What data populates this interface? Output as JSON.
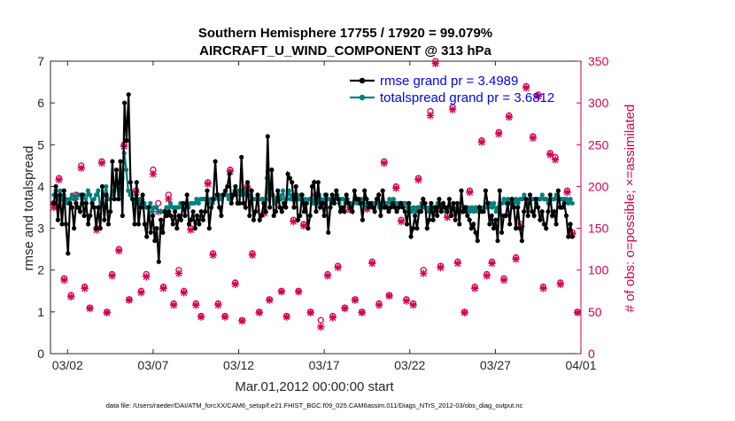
{
  "chart_data": {
    "type": "line",
    "title_line1": "Southern Hemisphere 17755 / 17920 = 99.079%",
    "title_line2": "AIRCRAFT_U_WIND_COMPONENT @ 313 hPa",
    "xlabel": "Mar.01,2012 00:00:00 start",
    "ylabel_left": "rmse and totalspread",
    "ylabel_right": "# of obs: o=possible; ×=assimilated",
    "footnote": "data file: /Users/raeder/DAI/ATM_forcXX/CAM6_setup/f.e21.FHIST_BGC.f09_025.CAM6assim.011/Diags_NTrS_2012-03/obs_diag_output.nc",
    "x_ticks": [
      {
        "label": "03/02",
        "day": 2
      },
      {
        "label": "03/07",
        "day": 7
      },
      {
        "label": "03/12",
        "day": 12
      },
      {
        "label": "03/17",
        "day": 17
      },
      {
        "label": "03/22",
        "day": 22
      },
      {
        "label": "03/27",
        "day": 27
      },
      {
        "label": "04/01",
        "day": 32
      }
    ],
    "xlim": [
      1,
      32
    ],
    "ylim_left": [
      0,
      7
    ],
    "yticks_left": [
      "0",
      "1",
      "2",
      "3",
      "4",
      "5",
      "6",
      "7"
    ],
    "ylim_right": [
      0,
      350
    ],
    "yticks_right": [
      "0",
      "50",
      "100",
      "150",
      "200",
      "250",
      "300",
      "350"
    ],
    "legend": [
      {
        "label": "rmse grand pr = 3.4989",
        "color": "#000000"
      },
      {
        "label": "totalspread grand pr = 3.6812",
        "color": "#007f7f"
      }
    ],
    "colors": {
      "rmse": "#000000",
      "spread": "#007f7f",
      "obs": "#d6004f",
      "legend_text": "#0000ff"
    },
    "series": [
      {
        "name": "rmse",
        "values": [
          3.6,
          4.0,
          3.2,
          3.8,
          3.1,
          3.9,
          3.1,
          2.4,
          3.6,
          3.5,
          3.0,
          3.6,
          3.5,
          3.4,
          3.8,
          3.3,
          3.6,
          3.1,
          3.3,
          3.6,
          3.5,
          3.0,
          3.5,
          3.0,
          4.0,
          3.2,
          3.8,
          3.1,
          3.4,
          4.6,
          3.7,
          4.4,
          3.7,
          4.6,
          3.3,
          6.0,
          5.1,
          6.2,
          4.1,
          3.7,
          3.1,
          4.1,
          3.1,
          3.5,
          3.8,
          3.1,
          2.8,
          3.5,
          2.9,
          3.3,
          2.7,
          3.0,
          2.2,
          3.2,
          2.9,
          3.4,
          3.3,
          3.4,
          3.3,
          3.1,
          3.4,
          3.0,
          3.3,
          3.2,
          3.6,
          3.3,
          3.8,
          3.1,
          3.2,
          3.4,
          3.0,
          3.3,
          3.1,
          3.4,
          3.2,
          3.4,
          3.9,
          3.0,
          3.5,
          3.7,
          4.6,
          3.8,
          3.5,
          3.3,
          3.8,
          3.9,
          4.0,
          4.3,
          3.6,
          3.8,
          4.0,
          3.6,
          3.6,
          4.7,
          3.6,
          3.5,
          4.1,
          3.3,
          3.9,
          3.2,
          3.4,
          3.8,
          3.2,
          3.3,
          3.6,
          3.4,
          5.2,
          3.5,
          4.4,
          3.3,
          3.4,
          3.9,
          3.5,
          3.4,
          3.6,
          3.5,
          4.3,
          4.2,
          4.1,
          3.5,
          4.0,
          3.2,
          3.3,
          3.8,
          3.4,
          3.6,
          3.0,
          3.3,
          4.0,
          4.1,
          3.4,
          4.1,
          3.5,
          3.6,
          3.3,
          3.8,
          2.9,
          3.5,
          3.8,
          3.6,
          3.9,
          3.7,
          3.4,
          3.5,
          3.4,
          3.8,
          3.6,
          3.5,
          3.4,
          3.9,
          3.7,
          3.7,
          3.6,
          3.2,
          3.9,
          3.7,
          3.5,
          3.6,
          3.5,
          3.4,
          3.7,
          3.8,
          3.3,
          3.9,
          3.5,
          3.5,
          3.4,
          3.5,
          3.6,
          3.5,
          3.4,
          3.5,
          3.6,
          3.5,
          3.4,
          3.1,
          3.6,
          2.8,
          3.0,
          3.3,
          3.0,
          3.4,
          3.4,
          3.7,
          3.6,
          3.0,
          3.2,
          3.6,
          3.2,
          3.5,
          3.3,
          3.7,
          3.4,
          3.6,
          3.5,
          3.4,
          3.7,
          3.3,
          3.6,
          3.2,
          3.6,
          3.1,
          3.9,
          3.4,
          3.5,
          3.3,
          3.2,
          3.0,
          3.1,
          2.9,
          2.7,
          3.5,
          3.4,
          3.4,
          3.9,
          3.6,
          3.1,
          3.3,
          3.0,
          3.2,
          2.7,
          3.9,
          2.9,
          3.3,
          3.3,
          3.6,
          3.1,
          3.7,
          3.5,
          3.0,
          3.5,
          3.0,
          2.7,
          3.4,
          3.7,
          3.3,
          3.8,
          3.4,
          3.3,
          3.7,
          3.5,
          3.2,
          3.4,
          3.1,
          3.0,
          3.4,
          3.8,
          3.3,
          3.4,
          3.1,
          3.9,
          3.5,
          3.5,
          3.6,
          3.3,
          2.8,
          3.1,
          2.8
        ]
      },
      {
        "name": "totalspread",
        "values": [
          3.8,
          3.9,
          3.7,
          3.9,
          3.7,
          3.8,
          3.7,
          3.6,
          3.7,
          3.8,
          3.7,
          3.7,
          3.8,
          3.8,
          3.6,
          3.8,
          3.6,
          3.9,
          3.8,
          3.6,
          3.7,
          3.8,
          3.9,
          3.5,
          3.6,
          3.8,
          4.0,
          3.7,
          3.7,
          3.8,
          3.9,
          4.0,
          4.1,
          3.8,
          4.2,
          4.8,
          4.4,
          3.9,
          3.8,
          3.7,
          3.6,
          3.8,
          3.6,
          3.7,
          3.7,
          3.6,
          3.5,
          3.5,
          3.6,
          3.4,
          3.5,
          3.5,
          3.4,
          3.4,
          3.4,
          3.4,
          3.5,
          3.5,
          3.6,
          3.5,
          3.5,
          3.5,
          3.5,
          3.6,
          3.5,
          3.6,
          3.6,
          3.5,
          3.6,
          3.6,
          3.6,
          3.7,
          3.6,
          3.7,
          3.7,
          3.7,
          3.7,
          3.6,
          3.7,
          3.6,
          3.7,
          3.8,
          3.8,
          3.7,
          3.8,
          3.8,
          3.8,
          3.7,
          3.8,
          3.8,
          3.9,
          3.8,
          3.9,
          3.9,
          3.8,
          3.9,
          3.8,
          3.8,
          3.8,
          3.7,
          3.7,
          3.7,
          3.7,
          3.7,
          3.7,
          3.6,
          4.2,
          3.7,
          3.8,
          3.8,
          3.6,
          3.7,
          3.8,
          3.7,
          3.9,
          3.6,
          3.7,
          3.9,
          3.7,
          3.8,
          3.7,
          3.8,
          3.7,
          3.8,
          3.6,
          3.7,
          3.6,
          3.7,
          3.7,
          3.6,
          3.8,
          3.6,
          3.8,
          3.7,
          3.6,
          3.8,
          3.7,
          3.7,
          3.6,
          3.7,
          3.7,
          3.8,
          3.6,
          3.7,
          3.7,
          3.6,
          3.7,
          3.6,
          3.6,
          3.6,
          3.7,
          3.6,
          3.6,
          3.7,
          3.6,
          3.5,
          3.6,
          3.6,
          3.6,
          3.6,
          3.6,
          3.6,
          3.5,
          3.6,
          3.5,
          3.6,
          3.6,
          3.7,
          3.6,
          3.7,
          3.6,
          3.6,
          3.6,
          3.6,
          3.6,
          3.6,
          3.5,
          3.5,
          3.4,
          3.5,
          3.4,
          3.5,
          3.5,
          3.6,
          3.5,
          3.5,
          3.4,
          3.5,
          3.4,
          3.5,
          3.5,
          3.6,
          3.5,
          3.5,
          3.5,
          3.4,
          3.5,
          3.5,
          3.5,
          3.5,
          3.4,
          3.5,
          3.4,
          3.4,
          3.5,
          3.4,
          3.5,
          3.4,
          3.5,
          3.4,
          3.5,
          3.4,
          3.5,
          3.4,
          3.5,
          3.5,
          3.5,
          3.6,
          3.5,
          3.6,
          3.4,
          3.5,
          3.6,
          3.6,
          3.7,
          3.6,
          3.7,
          3.6,
          3.7,
          3.6,
          3.7,
          3.6,
          3.7,
          3.7,
          3.8,
          3.7,
          3.6,
          3.7,
          3.7,
          3.7,
          3.6,
          3.7,
          3.7,
          3.8,
          3.7,
          3.7,
          3.6,
          3.7,
          3.7,
          3.7,
          3.8,
          3.7,
          3.7,
          3.7,
          3.7,
          3.7,
          3.6,
          3.7,
          3.6
        ]
      }
    ],
    "obs_counts": [
      {
        "day": 1.2,
        "possible": 180,
        "assimilated": 175
      },
      {
        "day": 1.5,
        "possible": 210,
        "assimilated": 208
      },
      {
        "day": 1.8,
        "possible": 90,
        "assimilated": 88
      },
      {
        "day": 2.2,
        "possible": 70,
        "assimilated": 68
      },
      {
        "day": 2.5,
        "possible": 190,
        "assimilated": 188
      },
      {
        "day": 2.8,
        "possible": 225,
        "assimilated": 222
      },
      {
        "day": 3.0,
        "possible": 80,
        "assimilated": 78
      },
      {
        "day": 3.3,
        "possible": 55,
        "assimilated": 54
      },
      {
        "day": 3.7,
        "possible": 150,
        "assimilated": 148
      },
      {
        "day": 4.0,
        "possible": 230,
        "assimilated": 228
      },
      {
        "day": 4.3,
        "possible": 50,
        "assimilated": 49
      },
      {
        "day": 4.6,
        "possible": 95,
        "assimilated": 93
      },
      {
        "day": 5.0,
        "possible": 125,
        "assimilated": 123
      },
      {
        "day": 5.3,
        "possible": 250,
        "assimilated": 248
      },
      {
        "day": 5.6,
        "possible": 65,
        "assimilated": 64
      },
      {
        "day": 6.0,
        "possible": 195,
        "assimilated": 193
      },
      {
        "day": 6.3,
        "possible": 75,
        "assimilated": 73
      },
      {
        "day": 6.6,
        "possible": 95,
        "assimilated": 92
      },
      {
        "day": 7.0,
        "possible": 220,
        "assimilated": 215
      },
      {
        "day": 7.3,
        "possible": 180,
        "assimilated": 170
      },
      {
        "day": 7.6,
        "possible": 80,
        "assimilated": 78
      },
      {
        "day": 7.9,
        "possible": 190,
        "assimilated": 185
      },
      {
        "day": 8.2,
        "possible": 60,
        "assimilated": 58
      },
      {
        "day": 8.5,
        "possible": 100,
        "assimilated": 96
      },
      {
        "day": 8.8,
        "possible": 75,
        "assimilated": 73
      },
      {
        "day": 9.2,
        "possible": 150,
        "assimilated": 148
      },
      {
        "day": 9.5,
        "possible": 60,
        "assimilated": 58
      },
      {
        "day": 9.8,
        "possible": 45,
        "assimilated": 44
      },
      {
        "day": 10.2,
        "possible": 205,
        "assimilated": 203
      },
      {
        "day": 10.5,
        "possible": 120,
        "assimilated": 118
      },
      {
        "day": 10.8,
        "possible": 60,
        "assimilated": 58
      },
      {
        "day": 11.2,
        "possible": 45,
        "assimilated": 44
      },
      {
        "day": 11.5,
        "possible": 220,
        "assimilated": 218
      },
      {
        "day": 11.8,
        "possible": 85,
        "assimilated": 83
      },
      {
        "day": 12.2,
        "possible": 40,
        "assimilated": 39
      },
      {
        "day": 12.5,
        "possible": 200,
        "assimilated": 198
      },
      {
        "day": 12.8,
        "possible": 120,
        "assimilated": 118
      },
      {
        "day": 13.2,
        "possible": 50,
        "assimilated": 49
      },
      {
        "day": 13.5,
        "possible": 170,
        "assimilated": 168
      },
      {
        "day": 13.8,
        "possible": 65,
        "assimilated": 64
      },
      {
        "day": 14.2,
        "possible": 185,
        "assimilated": 183
      },
      {
        "day": 14.5,
        "possible": 75,
        "assimilated": 74
      },
      {
        "day": 14.8,
        "possible": 45,
        "assimilated": 44
      },
      {
        "day": 15.2,
        "possible": 160,
        "assimilated": 158
      },
      {
        "day": 15.5,
        "possible": 75,
        "assimilated": 74
      },
      {
        "day": 15.8,
        "possible": 155,
        "assimilated": 153
      },
      {
        "day": 16.2,
        "possible": 50,
        "assimilated": 49
      },
      {
        "day": 16.5,
        "possible": 190,
        "assimilated": 188
      },
      {
        "day": 16.8,
        "possible": 40,
        "assimilated": 32
      },
      {
        "day": 17.2,
        "possible": 95,
        "assimilated": 93
      },
      {
        "day": 17.5,
        "possible": 45,
        "assimilated": 43
      },
      {
        "day": 17.8,
        "possible": 105,
        "assimilated": 103
      },
      {
        "day": 18.2,
        "possible": 55,
        "assimilated": 54
      },
      {
        "day": 18.5,
        "possible": 175,
        "assimilated": 172
      },
      {
        "day": 18.8,
        "possible": 65,
        "assimilated": 64
      },
      {
        "day": 19.2,
        "possible": 50,
        "assimilated": 49
      },
      {
        "day": 19.5,
        "possible": 175,
        "assimilated": 173
      },
      {
        "day": 19.8,
        "possible": 110,
        "assimilated": 108
      },
      {
        "day": 20.2,
        "possible": 60,
        "assimilated": 58
      },
      {
        "day": 20.5,
        "possible": 230,
        "assimilated": 228
      },
      {
        "day": 20.8,
        "possible": 70,
        "assimilated": 69
      },
      {
        "day": 21.2,
        "possible": 200,
        "assimilated": 198
      },
      {
        "day": 21.5,
        "possible": 160,
        "assimilated": 158
      },
      {
        "day": 21.8,
        "possible": 65,
        "assimilated": 63
      },
      {
        "day": 22.2,
        "possible": 60,
        "assimilated": 58
      },
      {
        "day": 22.5,
        "possible": 210,
        "assimilated": 208
      },
      {
        "day": 22.8,
        "possible": 100,
        "assimilated": 96
      },
      {
        "day": 23.2,
        "possible": 290,
        "assimilated": 285
      },
      {
        "day": 23.5,
        "possible": 350,
        "assimilated": 347
      },
      {
        "day": 23.8,
        "possible": 105,
        "assimilated": 103
      },
      {
        "day": 24.2,
        "possible": 165,
        "assimilated": 163
      },
      {
        "day": 24.5,
        "possible": 295,
        "assimilated": 292
      },
      {
        "day": 24.8,
        "possible": 110,
        "assimilated": 108
      },
      {
        "day": 25.2,
        "possible": 50,
        "assimilated": 49
      },
      {
        "day": 25.5,
        "possible": 195,
        "assimilated": 193
      },
      {
        "day": 25.8,
        "possible": 80,
        "assimilated": 78
      },
      {
        "day": 26.2,
        "possible": 255,
        "assimilated": 253
      },
      {
        "day": 26.5,
        "possible": 95,
        "assimilated": 93
      },
      {
        "day": 26.8,
        "possible": 110,
        "assimilated": 108
      },
      {
        "day": 27.2,
        "possible": 265,
        "assimilated": 263
      },
      {
        "day": 27.5,
        "possible": 90,
        "assimilated": 88
      },
      {
        "day": 27.8,
        "possible": 285,
        "assimilated": 283
      },
      {
        "day": 28.2,
        "possible": 115,
        "assimilated": 113
      },
      {
        "day": 28.5,
        "possible": 155,
        "assimilated": 152
      },
      {
        "day": 28.8,
        "possible": 320,
        "assimilated": 318
      },
      {
        "day": 29.2,
        "possible": 260,
        "assimilated": 258
      },
      {
        "day": 29.5,
        "possible": 310,
        "assimilated": 308
      },
      {
        "day": 29.8,
        "possible": 80,
        "assimilated": 78
      },
      {
        "day": 30.2,
        "possible": 240,
        "assimilated": 238
      },
      {
        "day": 30.5,
        "possible": 235,
        "assimilated": 232
      },
      {
        "day": 30.8,
        "possible": 85,
        "assimilated": 83
      },
      {
        "day": 31.2,
        "possible": 195,
        "assimilated": 193
      },
      {
        "day": 31.5,
        "possible": 145,
        "assimilated": 143
      },
      {
        "day": 31.8,
        "possible": 50,
        "assimilated": 49
      }
    ]
  }
}
